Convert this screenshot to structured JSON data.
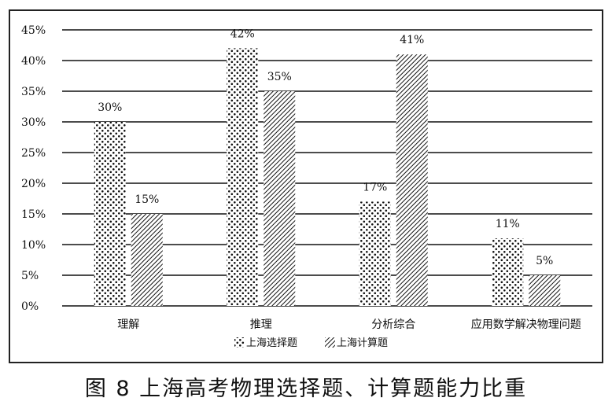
{
  "caption": "图 8  上海高考物理选择题、计算题能力比重",
  "chart_data": {
    "type": "bar",
    "categories": [
      "理解",
      "推理",
      "分析综合",
      "应用数学解决物理问题"
    ],
    "series": [
      {
        "name": "上海选择题",
        "values": [
          30,
          42,
          17,
          11
        ],
        "value_labels": [
          "30%",
          "42%",
          "17%",
          "11%"
        ],
        "pattern": "dots"
      },
      {
        "name": "上海计算题",
        "values": [
          15,
          35,
          41,
          5
        ],
        "value_labels": [
          "15%",
          "35%",
          "41%",
          "5%"
        ],
        "pattern": "hatch"
      }
    ],
    "ylim": [
      0,
      45
    ],
    "yticks": [
      0,
      5,
      10,
      15,
      20,
      25,
      30,
      35,
      40,
      45
    ],
    "ytick_labels": [
      "0%",
      "5%",
      "10%",
      "15%",
      "20%",
      "25%",
      "30%",
      "35%",
      "40%",
      "45%"
    ],
    "grid": true,
    "legend": "bottom-center",
    "colors": {
      "bar_fill": "#ffffff",
      "mark": "#111111",
      "grid": "#111111"
    }
  }
}
